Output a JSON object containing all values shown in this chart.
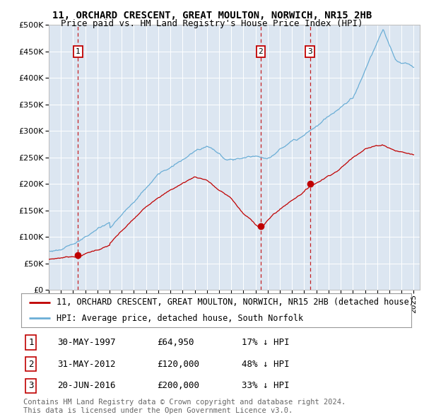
{
  "title": "11, ORCHARD CRESCENT, GREAT MOULTON, NORWICH, NR15 2HB",
  "subtitle": "Price paid vs. HM Land Registry's House Price Index (HPI)",
  "ytick_vals": [
    0,
    50000,
    100000,
    150000,
    200000,
    250000,
    300000,
    350000,
    400000,
    450000,
    500000
  ],
  "xmin": 1995.0,
  "xmax": 2025.5,
  "ymin": 0,
  "ymax": 500000,
  "sale_dates": [
    1997.41,
    2012.41,
    2016.47
  ],
  "sale_prices": [
    64950,
    120000,
    200000
  ],
  "sale_labels": [
    "1",
    "2",
    "3"
  ],
  "hpi_line_color": "#6baed6",
  "price_line_color": "#c00000",
  "vline_color": "#c00000",
  "plot_bg_color": "#dce6f1",
  "legend_line1": "11, ORCHARD CRESCENT, GREAT MOULTON, NORWICH, NR15 2HB (detached house)",
  "legend_line2": "HPI: Average price, detached house, South Norfolk",
  "table_rows": [
    [
      "1",
      "30-MAY-1997",
      "£64,950",
      "17% ↓ HPI"
    ],
    [
      "2",
      "31-MAY-2012",
      "£120,000",
      "48% ↓ HPI"
    ],
    [
      "3",
      "20-JUN-2016",
      "£200,000",
      "33% ↓ HPI"
    ]
  ],
  "footer": "Contains HM Land Registry data © Crown copyright and database right 2024.\nThis data is licensed under the Open Government Licence v3.0.",
  "title_fontsize": 10,
  "subtitle_fontsize": 9,
  "tick_fontsize": 8,
  "legend_fontsize": 8.5,
  "table_fontsize": 9,
  "footer_fontsize": 7.5
}
